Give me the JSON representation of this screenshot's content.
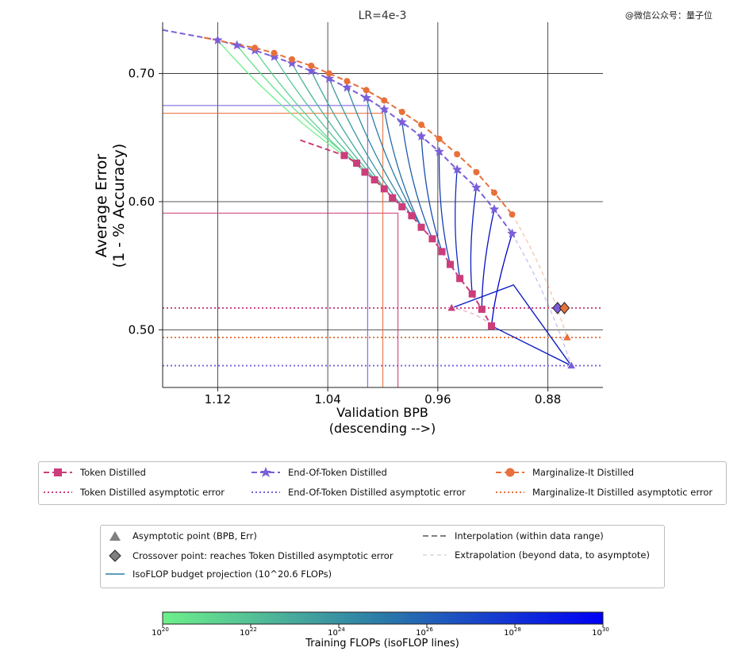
{
  "watermark": "@微信公众号：量子位",
  "chart_data": {
    "type": "line",
    "title": "LR=4e-3",
    "xlabel": "Validation BPB",
    "xlabel2": "(descending -->)",
    "ylabel": "Average Error",
    "ylabel2": "(1 - % Accuracy)",
    "x_reversed": true,
    "xlim": [
      1.16,
      0.84
    ],
    "ylim": [
      0.455,
      0.74
    ],
    "xticks": [
      1.12,
      1.04,
      0.96,
      0.88
    ],
    "xtick_labels": [
      "1.12",
      "1.04",
      "0.96",
      "0.88"
    ],
    "yticks": [
      0.5,
      0.6,
      0.7
    ],
    "ytick_labels": [
      "0.50",
      "0.60",
      "0.70"
    ],
    "grid": true,
    "series": [
      {
        "name": "Token Distilled",
        "color": "#cc3d7a",
        "marker": "square",
        "x": [
          1.028,
          1.019,
          1.013,
          1.006,
          0.999,
          0.993,
          0.986,
          0.979,
          0.972,
          0.964,
          0.957,
          0.951,
          0.944,
          0.935,
          0.928,
          0.921
        ],
        "y": [
          0.636,
          0.63,
          0.623,
          0.617,
          0.61,
          0.603,
          0.596,
          0.589,
          0.58,
          0.571,
          0.561,
          0.551,
          0.54,
          0.528,
          0.516,
          0.503
        ],
        "asymptotic_error": 0.517,
        "asymptote_point": [
          0.95,
          0.517
        ],
        "interp_x": [
          1.06,
          0.93
        ],
        "extrap_end": [
          0.95,
          0.517
        ]
      },
      {
        "name": "End-Of-Token Distilled",
        "color": "#7b5fd9",
        "marker": "star",
        "x": [
          1.12,
          1.106,
          1.093,
          1.079,
          1.066,
          1.052,
          1.039,
          1.026,
          1.012,
          0.999,
          0.986,
          0.972,
          0.959,
          0.946,
          0.932,
          0.919,
          0.906
        ],
        "y": [
          0.726,
          0.722,
          0.718,
          0.713,
          0.708,
          0.702,
          0.696,
          0.689,
          0.681,
          0.672,
          0.662,
          0.651,
          0.639,
          0.625,
          0.611,
          0.594,
          0.575
        ],
        "asymptotic_error": 0.472,
        "asymptote_point": [
          0.863,
          0.472
        ],
        "interp_x": [
          1.16,
          0.906
        ],
        "extrap_end": [
          0.863,
          0.472
        ]
      },
      {
        "name": "Marginalize-It Distilled",
        "color": "#e8703a",
        "marker": "circle",
        "x": [
          1.093,
          1.079,
          1.066,
          1.052,
          1.039,
          1.026,
          1.012,
          0.999,
          0.986,
          0.972,
          0.959,
          0.946,
          0.932,
          0.919,
          0.906
        ],
        "y": [
          0.72,
          0.716,
          0.711,
          0.706,
          0.7,
          0.694,
          0.687,
          0.679,
          0.67,
          0.66,
          0.649,
          0.637,
          0.623,
          0.607,
          0.59
        ],
        "asymptotic_error": 0.494,
        "asymptote_point": [
          0.866,
          0.494
        ],
        "interp_x": [
          1.13,
          0.906
        ],
        "extrap_end": [
          0.866,
          0.494
        ]
      }
    ],
    "crossover_points": [
      {
        "name": "End-Of-Token Distilled",
        "x": 0.873,
        "y": 0.517
      },
      {
        "name": "Marginalize-It Distilled",
        "x": 0.868,
        "y": 0.517
      }
    ],
    "reference_lines": [
      {
        "series": "Token Distilled",
        "x": 0.989,
        "y": 0.591
      },
      {
        "series": "Marginalize-It Distilled",
        "x": 1.0,
        "y": 0.669
      },
      {
        "series": "End-Of-Token Distilled",
        "x": 1.011,
        "y": 0.675
      }
    ],
    "legend_top": [
      "Token Distilled",
      "End-Of-Token Distilled",
      "Marginalize-It Distilled",
      "Token Distilled asymptotic error",
      "End-Of-Token Distilled asymptotic error",
      "Marginalize-It Distilled asymptotic error"
    ],
    "legend_bottom": [
      "Asymptotic point (BPB, Err)",
      "Interpolation (within data range)",
      "Crossover point: reaches Token Distilled asymptotic error",
      "Extrapolation (beyond data, to asymptote)",
      "IsoFLOP budget projection (10^20.6 FLOPs)"
    ],
    "colorbar": {
      "label": "Training FLOPs (isoFLOP lines)",
      "exponents": [
        20,
        22,
        24,
        26,
        28,
        30
      ],
      "tick_base": "10",
      "color_low": "#6ef08a",
      "color_high": "#0000f5"
    }
  }
}
